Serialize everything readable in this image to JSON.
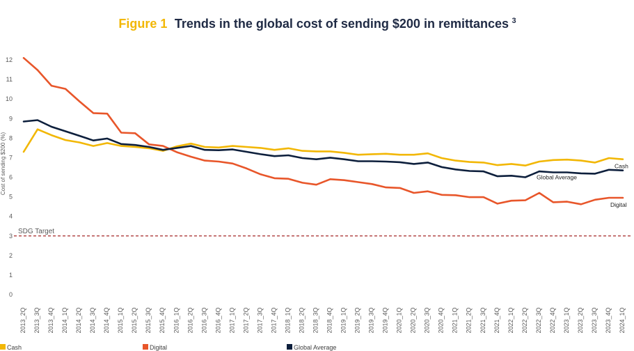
{
  "title": {
    "figure_label": "Figure 1",
    "text": "Trends in the global cost of sending $200 in remittances",
    "superscript": "3"
  },
  "chart_data": {
    "type": "line",
    "ylabel": "Cost of sending $200 (%)",
    "xlabel": "",
    "ylim": [
      0,
      12
    ],
    "yticks": [
      0,
      1,
      2,
      3,
      4,
      5,
      6,
      7,
      8,
      9,
      10,
      11,
      12
    ],
    "grid": false,
    "legend_position": "bottom",
    "categories": [
      "2013_2Q",
      "2013_3Q",
      "2013_4Q",
      "2014_1Q",
      "2014_2Q",
      "2014_3Q",
      "2014_4Q",
      "2015_1Q",
      "2015_2Q",
      "2015_3Q",
      "2015_4Q",
      "2016_1Q",
      "2016_2Q",
      "2016_3Q",
      "2016_4Q",
      "2017_1Q",
      "2017_2Q",
      "2017_3Q",
      "2017_4Q",
      "2018_1Q",
      "2018_2Q",
      "2018_3Q",
      "2018_4Q",
      "2019_1Q",
      "2019_2Q",
      "2019_3Q",
      "2019_4Q",
      "2020_1Q",
      "2020_2Q",
      "2020_3Q",
      "2020_4Q",
      "2021_1Q",
      "2021_2Q",
      "2021_3Q",
      "2021_4Q",
      "2022_1Q",
      "2022_2Q",
      "2022_3Q",
      "2022_4Q",
      "2023_1Q",
      "2023_2Q",
      "2023_3Q",
      "2023_4Q",
      "2024_1Q"
    ],
    "series": [
      {
        "name": "Cash",
        "color": "#f2b705",
        "end_label": "Cash",
        "values": [
          7.3,
          8.45,
          8.15,
          7.9,
          7.78,
          7.6,
          7.75,
          7.6,
          7.55,
          7.48,
          7.35,
          7.58,
          7.72,
          7.55,
          7.52,
          7.6,
          7.55,
          7.5,
          7.4,
          7.48,
          7.35,
          7.32,
          7.32,
          7.25,
          7.15,
          7.18,
          7.2,
          7.15,
          7.15,
          7.22,
          6.98,
          6.85,
          6.78,
          6.75,
          6.62,
          6.68,
          6.6,
          6.8,
          6.88,
          6.9,
          6.85,
          6.75,
          6.98,
          6.92
        ]
      },
      {
        "name": "Digital",
        "color": "#e8562a",
        "end_label": "Digital",
        "values": [
          12.1,
          11.48,
          10.68,
          10.52,
          9.88,
          9.28,
          9.25,
          8.28,
          8.25,
          7.68,
          7.6,
          7.28,
          7.05,
          6.85,
          6.8,
          6.7,
          6.45,
          6.15,
          5.95,
          5.92,
          5.72,
          5.62,
          5.9,
          5.85,
          5.75,
          5.65,
          5.48,
          5.45,
          5.2,
          5.28,
          5.1,
          5.08,
          4.98,
          4.98,
          4.65,
          4.8,
          4.82,
          5.2,
          4.72,
          4.75,
          4.62,
          4.85,
          4.95,
          4.95
        ]
      },
      {
        "name": "Global Average",
        "color": "#0d1f3c",
        "end_label": "Global Average",
        "values": [
          8.85,
          8.92,
          8.58,
          8.35,
          8.12,
          7.88,
          7.98,
          7.7,
          7.65,
          7.55,
          7.4,
          7.5,
          7.6,
          7.4,
          7.38,
          7.42,
          7.3,
          7.18,
          7.08,
          7.12,
          6.98,
          6.92,
          7.0,
          6.92,
          6.82,
          6.82,
          6.8,
          6.77,
          6.68,
          6.75,
          6.52,
          6.4,
          6.32,
          6.3,
          6.05,
          6.08,
          6.0,
          6.3,
          6.25,
          6.25,
          6.2,
          6.18,
          6.38,
          6.35
        ]
      }
    ],
    "annotations": [
      {
        "label": "SDG Target",
        "y": 3,
        "color": "#a52a2a",
        "style": "dashed"
      }
    ]
  }
}
